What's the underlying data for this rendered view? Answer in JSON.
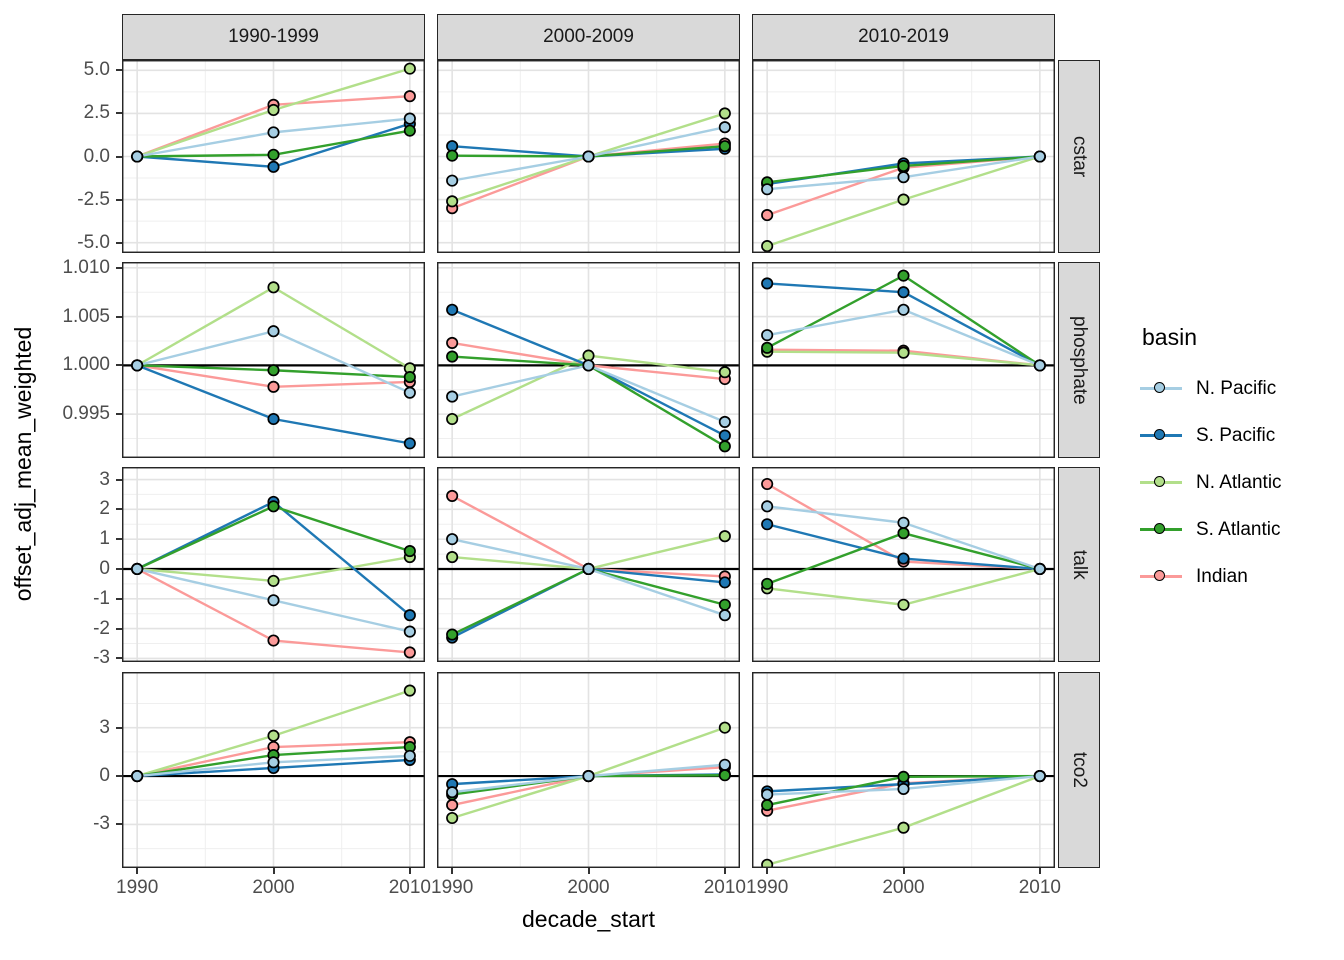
{
  "chart_data": {
    "type": "line",
    "title": "",
    "xlabel": "decade_start",
    "ylabel": "offset_adj_mean_weighted",
    "legend_title": "basin",
    "legend_position": "right",
    "grid": true,
    "x": [
      1990,
      2000,
      2010
    ],
    "x_ticks": [
      "1990",
      "2000",
      "2010"
    ],
    "col_facets": [
      "1990-1999",
      "2000-2009",
      "2010-2019"
    ],
    "series": [
      {
        "name": "N. Pacific",
        "color": "#a6cee3"
      },
      {
        "name": "S. Pacific",
        "color": "#1f78b4"
      },
      {
        "name": "N. Atlantic",
        "color": "#b2df8a"
      },
      {
        "name": "S. Atlantic",
        "color": "#33a02c"
      },
      {
        "name": "Indian",
        "color": "#fb9a99"
      }
    ],
    "draw_order": [
      "Indian",
      "N. Atlantic",
      "S. Pacific",
      "S. Atlantic",
      "N. Pacific"
    ],
    "rows": [
      {
        "label": "cstar",
        "ylim": [
          -5.6,
          5.6
        ],
        "tick_labels": [
          "5.0",
          "2.5",
          "0.0",
          "-2.5",
          "-5.0"
        ],
        "tick_values": [
          5.0,
          2.5,
          0.0,
          -2.5,
          -5.0
        ],
        "hline": null,
        "values": {
          "1990-1999": {
            "N. Pacific": [
              0,
              1.4,
              2.2
            ],
            "S. Pacific": [
              0,
              -0.6,
              1.9
            ],
            "N. Atlantic": [
              0,
              2.7,
              5.1
            ],
            "S. Atlantic": [
              0,
              0.1,
              1.5
            ],
            "Indian": [
              0,
              3.0,
              3.5
            ]
          },
          "2000-2009": {
            "N. Pacific": [
              -1.4,
              0,
              1.7
            ],
            "S. Pacific": [
              0.6,
              0,
              0.45
            ],
            "N. Atlantic": [
              -2.6,
              0,
              2.5
            ],
            "S. Atlantic": [
              0.05,
              0,
              0.6
            ],
            "Indian": [
              -3.0,
              0,
              0.75
            ]
          },
          "2010-2019": {
            "N. Pacific": [
              -1.9,
              -1.2,
              0
            ],
            "S. Pacific": [
              -1.6,
              -0.4,
              0
            ],
            "N. Atlantic": [
              -5.2,
              -2.5,
              0
            ],
            "S. Atlantic": [
              -1.5,
              -0.55,
              0
            ],
            "Indian": [
              -3.4,
              -0.65,
              0
            ]
          }
        }
      },
      {
        "label": "phosphate",
        "ylim": [
          0.9905,
          1.0106
        ],
        "tick_labels": [
          "1.010",
          "1.005",
          "1.000",
          "0.995"
        ],
        "tick_values": [
          1.01,
          1.005,
          1.0,
          0.995
        ],
        "hline": 1.0,
        "values": {
          "1990-1999": {
            "N. Pacific": [
              1.0,
              1.0035,
              0.9972
            ],
            "S. Pacific": [
              1.0,
              0.9945,
              0.992
            ],
            "N. Atlantic": [
              1.0,
              1.008,
              0.9997
            ],
            "S. Atlantic": [
              1.0,
              0.9995,
              0.9988
            ],
            "Indian": [
              1.0,
              0.9978,
              0.9983
            ]
          },
          "2000-2009": {
            "N. Pacific": [
              0.9968,
              1.0,
              0.9942
            ],
            "S. Pacific": [
              1.0057,
              1.0,
              0.9928
            ],
            "N. Atlantic": [
              0.9945,
              1.001,
              0.9993
            ],
            "S. Atlantic": [
              1.0009,
              1.0,
              0.9917
            ],
            "Indian": [
              1.0023,
              1.0,
              0.9986
            ]
          },
          "2010-2019": {
            "N. Pacific": [
              1.0031,
              1.0057,
              1.0
            ],
            "S. Pacific": [
              1.0084,
              1.0075,
              1.0
            ],
            "N. Atlantic": [
              1.0014,
              1.0013,
              1.0
            ],
            "S. Atlantic": [
              1.0018,
              1.0092,
              1.0
            ],
            "Indian": [
              1.0016,
              1.0015,
              1.0
            ]
          }
        }
      },
      {
        "label": "talk",
        "ylim": [
          -3.12,
          3.42
        ],
        "tick_labels": [
          "3",
          "2",
          "1",
          "0",
          "-1",
          "-2",
          "-3"
        ],
        "tick_values": [
          3,
          2,
          1,
          0,
          -1,
          -2,
          -3
        ],
        "hline": 0,
        "values": {
          "1990-1999": {
            "N. Pacific": [
              0,
              -1.05,
              -2.1
            ],
            "S. Pacific": [
              0,
              2.25,
              -1.55
            ],
            "N. Atlantic": [
              0,
              -0.4,
              0.4
            ],
            "S. Atlantic": [
              0,
              2.1,
              0.6
            ],
            "Indian": [
              0,
              -2.4,
              -2.8
            ]
          },
          "2000-2009": {
            "N. Pacific": [
              1.0,
              0,
              -1.55
            ],
            "S. Pacific": [
              -2.3,
              0,
              -0.45
            ],
            "N. Atlantic": [
              0.4,
              0,
              1.1
            ],
            "S. Atlantic": [
              -2.2,
              0,
              -1.2
            ],
            "Indian": [
              2.45,
              0,
              -0.25
            ]
          },
          "2010-2019": {
            "N. Pacific": [
              2.1,
              1.55,
              0
            ],
            "S. Pacific": [
              1.5,
              0.35,
              0
            ],
            "N. Atlantic": [
              -0.65,
              -1.2,
              0
            ],
            "S. Atlantic": [
              -0.5,
              1.2,
              0
            ],
            "Indian": [
              2.85,
              0.25,
              0
            ]
          }
        }
      },
      {
        "label": "tco2",
        "ylim": [
          -5.7,
          6.45
        ],
        "tick_labels": [
          "3",
          "0",
          "-3"
        ],
        "tick_values": [
          3,
          0,
          -3
        ],
        "hline": 0,
        "values": {
          "1990-1999": {
            "N. Pacific": [
              0,
              0.85,
              1.25
            ],
            "S. Pacific": [
              0,
              0.5,
              1.0
            ],
            "N. Atlantic": [
              0,
              2.5,
              5.3
            ],
            "S. Atlantic": [
              0,
              1.3,
              1.8
            ],
            "Indian": [
              0,
              1.8,
              2.1
            ]
          },
          "2000-2009": {
            "N. Pacific": [
              -1.0,
              0,
              0.7
            ],
            "S. Pacific": [
              -0.5,
              0,
              0.1
            ],
            "N. Atlantic": [
              -2.6,
              0,
              3.0
            ],
            "S. Atlantic": [
              -1.15,
              0,
              0.05
            ],
            "Indian": [
              -1.8,
              0,
              0.55
            ]
          },
          "2010-2019": {
            "N. Pacific": [
              -1.15,
              -0.8,
              0
            ],
            "S. Pacific": [
              -0.95,
              -0.5,
              0
            ],
            "N. Atlantic": [
              -5.5,
              -3.2,
              0
            ],
            "S. Atlantic": [
              -1.8,
              -0.05,
              0
            ],
            "Indian": [
              -2.15,
              -0.45,
              0
            ]
          }
        }
      }
    ]
  }
}
